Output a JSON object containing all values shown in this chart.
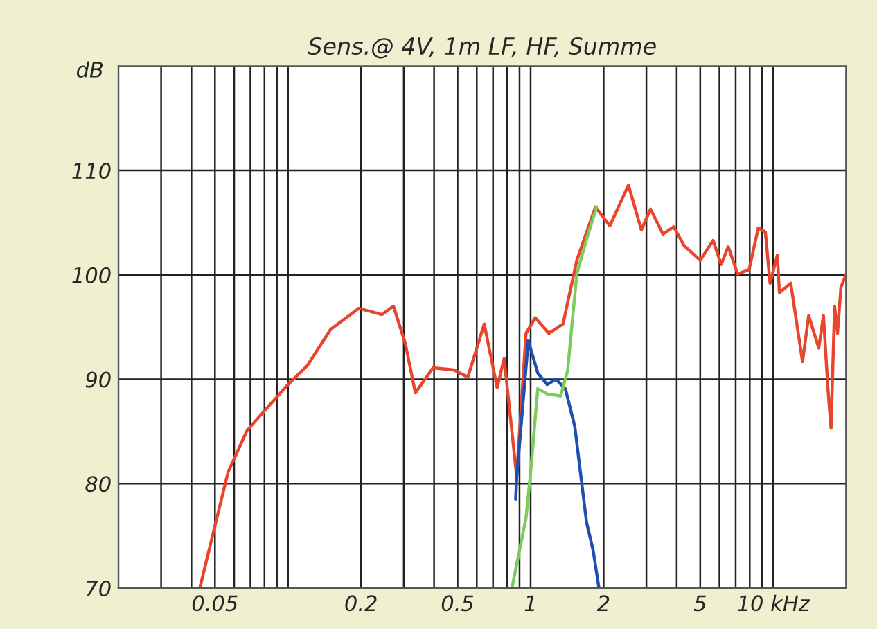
{
  "chart_data": {
    "type": "line",
    "title": "Sens.@ 4V, 1m LF, HF, Summe",
    "ylabel": "dB",
    "log": "x",
    "xlim": [
      0.02,
      20
    ],
    "ylim": [
      70,
      120
    ],
    "xticks": [
      {
        "value": 0.02,
        "label": null
      },
      {
        "value": 0.03,
        "label": null
      },
      {
        "value": 0.04,
        "label": null
      },
      0.05,
      {
        "value": 0.06,
        "label": null
      },
      {
        "value": 0.07,
        "label": null
      },
      {
        "value": 0.08,
        "label": null
      },
      {
        "value": 0.09,
        "label": null
      },
      {
        "value": 0.1,
        "label": null
      },
      0.2,
      {
        "value": 0.3,
        "label": null
      },
      {
        "value": 0.4,
        "label": null
      },
      0.5,
      {
        "value": 0.6,
        "label": null
      },
      {
        "value": 0.7,
        "label": null
      },
      {
        "value": 0.8,
        "label": null
      },
      {
        "value": 0.9,
        "label": null
      },
      1,
      2,
      {
        "value": 3,
        "label": null
      },
      {
        "value": 4,
        "label": null
      },
      5,
      {
        "value": 6,
        "label": null
      },
      {
        "value": 7,
        "label": null
      },
      {
        "value": 8,
        "label": null
      },
      {
        "value": 9,
        "label": null
      },
      {
        "value": 10,
        "label": "10 kHz"
      },
      {
        "value": 20,
        "label": null
      }
    ],
    "yticks": [
      70,
      80,
      90,
      100,
      110
    ],
    "grid": true,
    "line_style": "solid",
    "marker": "none",
    "series": [
      {
        "color": "#e8452c",
        "x": [
          0.0433,
          0.0566,
          0.0678,
          0.1,
          0.12,
          0.15,
          0.196,
          0.244,
          0.272,
          0.304,
          0.335,
          0.396,
          0.483,
          0.551,
          0.644,
          0.728,
          0.778,
          0.876,
          0.957,
          1.045,
          1.19,
          1.36,
          1.55,
          1.85,
          2.12,
          2.53,
          2.86,
          3.12,
          3.51,
          3.89,
          4.29,
          5.0,
          5.65,
          6.1,
          6.52,
          7.13,
          7.95,
          8.67,
          9.28,
          9.7,
          10.4,
          10.6,
          11.8,
          13.2,
          14.0,
          15.4,
          16.1,
          16.8,
          17.3,
          17.9,
          18.4,
          19.0,
          20.0
        ],
        "values": [
          70,
          81.1,
          85.1,
          89.5,
          91.3,
          94.8,
          96.8,
          96.2,
          97.0,
          93.5,
          88.7,
          91.1,
          90.9,
          90.2,
          95.3,
          89.2,
          92.0,
          80.7,
          94.4,
          95.9,
          94.4,
          95.3,
          101.4,
          106.5,
          104.7,
          108.6,
          104.3,
          106.3,
          103.9,
          104.6,
          102.8,
          101.4,
          103.3,
          101.0,
          102.7,
          100.1,
          100.5,
          104.5,
          104.1,
          99.2,
          101.9,
          98.3,
          99.2,
          91.7,
          96.1,
          93.0,
          96.1,
          89.1,
          85.3,
          97.0,
          94.4,
          98.8,
          100.1
        ]
      },
      {
        "color": "#1f4fb0",
        "x": [
          0.868,
          0.876,
          0.978,
          1.07,
          1.17,
          1.27,
          1.39,
          1.52,
          1.7,
          1.81,
          1.91
        ],
        "values": [
          78.5,
          80.6,
          93.7,
          90.6,
          89.5,
          90.0,
          89.1,
          85.5,
          76.3,
          73.6,
          70.1
        ]
      },
      {
        "color": "#7ccc5c",
        "x": [
          0.839,
          0.957,
          1.0,
          1.07,
          1.17,
          1.33,
          1.42,
          1.55,
          1.7,
          1.87
        ],
        "values": [
          70.1,
          76.7,
          81.1,
          89.1,
          88.6,
          88.4,
          90.8,
          100.1,
          103.4,
          106.5
        ]
      }
    ]
  }
}
